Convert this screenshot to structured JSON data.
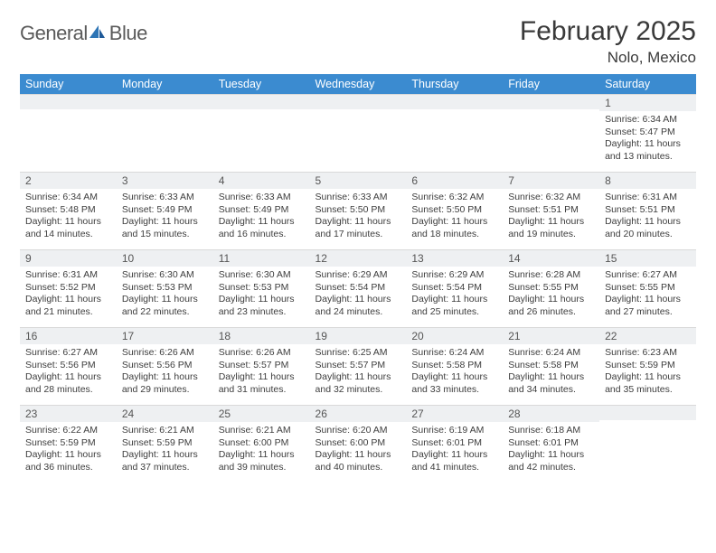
{
  "brand": {
    "word1": "General",
    "word2": "Blue"
  },
  "title": "February 2025",
  "location": "Nolo, Mexico",
  "colors": {
    "header_bg": "#3b8bd0",
    "header_fg": "#ffffff",
    "daybar_bg": "#eef0f2",
    "text": "#333333",
    "brand_gray": "#5a5a5a",
    "brand_blue": "#2e75b6"
  },
  "dow": [
    "Sunday",
    "Monday",
    "Tuesday",
    "Wednesday",
    "Thursday",
    "Friday",
    "Saturday"
  ],
  "weeks": [
    [
      {
        "n": "",
        "sr": "",
        "ss": "",
        "dl": ""
      },
      {
        "n": "",
        "sr": "",
        "ss": "",
        "dl": ""
      },
      {
        "n": "",
        "sr": "",
        "ss": "",
        "dl": ""
      },
      {
        "n": "",
        "sr": "",
        "ss": "",
        "dl": ""
      },
      {
        "n": "",
        "sr": "",
        "ss": "",
        "dl": ""
      },
      {
        "n": "",
        "sr": "",
        "ss": "",
        "dl": ""
      },
      {
        "n": "1",
        "sr": "Sunrise: 6:34 AM",
        "ss": "Sunset: 5:47 PM",
        "dl": "Daylight: 11 hours and 13 minutes."
      }
    ],
    [
      {
        "n": "2",
        "sr": "Sunrise: 6:34 AM",
        "ss": "Sunset: 5:48 PM",
        "dl": "Daylight: 11 hours and 14 minutes."
      },
      {
        "n": "3",
        "sr": "Sunrise: 6:33 AM",
        "ss": "Sunset: 5:49 PM",
        "dl": "Daylight: 11 hours and 15 minutes."
      },
      {
        "n": "4",
        "sr": "Sunrise: 6:33 AM",
        "ss": "Sunset: 5:49 PM",
        "dl": "Daylight: 11 hours and 16 minutes."
      },
      {
        "n": "5",
        "sr": "Sunrise: 6:33 AM",
        "ss": "Sunset: 5:50 PM",
        "dl": "Daylight: 11 hours and 17 minutes."
      },
      {
        "n": "6",
        "sr": "Sunrise: 6:32 AM",
        "ss": "Sunset: 5:50 PM",
        "dl": "Daylight: 11 hours and 18 minutes."
      },
      {
        "n": "7",
        "sr": "Sunrise: 6:32 AM",
        "ss": "Sunset: 5:51 PM",
        "dl": "Daylight: 11 hours and 19 minutes."
      },
      {
        "n": "8",
        "sr": "Sunrise: 6:31 AM",
        "ss": "Sunset: 5:51 PM",
        "dl": "Daylight: 11 hours and 20 minutes."
      }
    ],
    [
      {
        "n": "9",
        "sr": "Sunrise: 6:31 AM",
        "ss": "Sunset: 5:52 PM",
        "dl": "Daylight: 11 hours and 21 minutes."
      },
      {
        "n": "10",
        "sr": "Sunrise: 6:30 AM",
        "ss": "Sunset: 5:53 PM",
        "dl": "Daylight: 11 hours and 22 minutes."
      },
      {
        "n": "11",
        "sr": "Sunrise: 6:30 AM",
        "ss": "Sunset: 5:53 PM",
        "dl": "Daylight: 11 hours and 23 minutes."
      },
      {
        "n": "12",
        "sr": "Sunrise: 6:29 AM",
        "ss": "Sunset: 5:54 PM",
        "dl": "Daylight: 11 hours and 24 minutes."
      },
      {
        "n": "13",
        "sr": "Sunrise: 6:29 AM",
        "ss": "Sunset: 5:54 PM",
        "dl": "Daylight: 11 hours and 25 minutes."
      },
      {
        "n": "14",
        "sr": "Sunrise: 6:28 AM",
        "ss": "Sunset: 5:55 PM",
        "dl": "Daylight: 11 hours and 26 minutes."
      },
      {
        "n": "15",
        "sr": "Sunrise: 6:27 AM",
        "ss": "Sunset: 5:55 PM",
        "dl": "Daylight: 11 hours and 27 minutes."
      }
    ],
    [
      {
        "n": "16",
        "sr": "Sunrise: 6:27 AM",
        "ss": "Sunset: 5:56 PM",
        "dl": "Daylight: 11 hours and 28 minutes."
      },
      {
        "n": "17",
        "sr": "Sunrise: 6:26 AM",
        "ss": "Sunset: 5:56 PM",
        "dl": "Daylight: 11 hours and 29 minutes."
      },
      {
        "n": "18",
        "sr": "Sunrise: 6:26 AM",
        "ss": "Sunset: 5:57 PM",
        "dl": "Daylight: 11 hours and 31 minutes."
      },
      {
        "n": "19",
        "sr": "Sunrise: 6:25 AM",
        "ss": "Sunset: 5:57 PM",
        "dl": "Daylight: 11 hours and 32 minutes."
      },
      {
        "n": "20",
        "sr": "Sunrise: 6:24 AM",
        "ss": "Sunset: 5:58 PM",
        "dl": "Daylight: 11 hours and 33 minutes."
      },
      {
        "n": "21",
        "sr": "Sunrise: 6:24 AM",
        "ss": "Sunset: 5:58 PM",
        "dl": "Daylight: 11 hours and 34 minutes."
      },
      {
        "n": "22",
        "sr": "Sunrise: 6:23 AM",
        "ss": "Sunset: 5:59 PM",
        "dl": "Daylight: 11 hours and 35 minutes."
      }
    ],
    [
      {
        "n": "23",
        "sr": "Sunrise: 6:22 AM",
        "ss": "Sunset: 5:59 PM",
        "dl": "Daylight: 11 hours and 36 minutes."
      },
      {
        "n": "24",
        "sr": "Sunrise: 6:21 AM",
        "ss": "Sunset: 5:59 PM",
        "dl": "Daylight: 11 hours and 37 minutes."
      },
      {
        "n": "25",
        "sr": "Sunrise: 6:21 AM",
        "ss": "Sunset: 6:00 PM",
        "dl": "Daylight: 11 hours and 39 minutes."
      },
      {
        "n": "26",
        "sr": "Sunrise: 6:20 AM",
        "ss": "Sunset: 6:00 PM",
        "dl": "Daylight: 11 hours and 40 minutes."
      },
      {
        "n": "27",
        "sr": "Sunrise: 6:19 AM",
        "ss": "Sunset: 6:01 PM",
        "dl": "Daylight: 11 hours and 41 minutes."
      },
      {
        "n": "28",
        "sr": "Sunrise: 6:18 AM",
        "ss": "Sunset: 6:01 PM",
        "dl": "Daylight: 11 hours and 42 minutes."
      },
      {
        "n": "",
        "sr": "",
        "ss": "",
        "dl": ""
      }
    ]
  ]
}
